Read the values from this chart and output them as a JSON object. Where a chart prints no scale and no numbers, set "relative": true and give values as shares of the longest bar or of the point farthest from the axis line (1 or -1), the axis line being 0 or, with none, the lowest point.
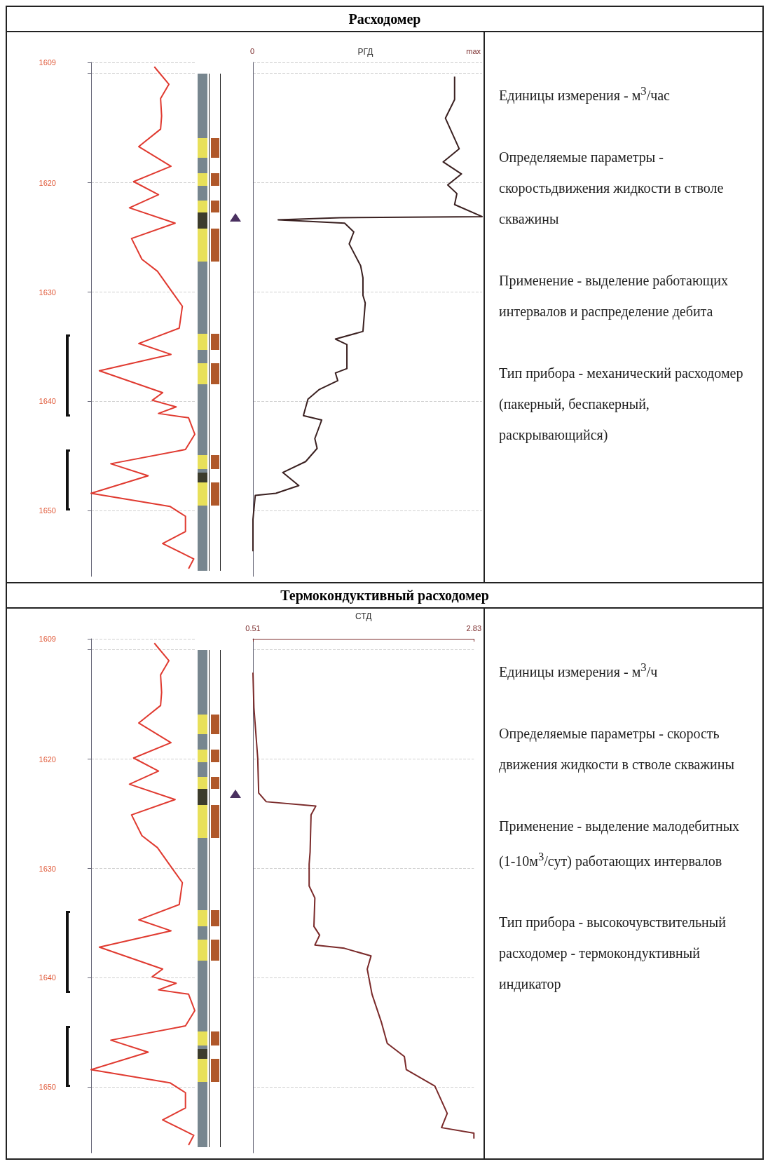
{
  "chart_data": [
    {
      "type": "line",
      "orientation": "horizontal",
      "relative": true,
      "ylim": [
        1656,
        1609
      ],
      "yticks": [
        1609,
        {
          "value": 1610,
          "label": null
        },
        1620,
        1630,
        1640,
        1650
      ],
      "grid": "y",
      "tick_labels": "y",
      "annotations": [
        "Единицы измерения - м$^{3}$/час",
        "Определяемые параметры - скоростьдвижения жидкости в стволе скважины",
        "Применение - выделение работающих интервалов и распределение дебита",
        "Тип прибора - механический расходомер (пакерный, беспакерный, раскрывающийся)"
      ],
      "series": [
        {
          "color": "#e03a30",
          "values": [
            0.61,
            0.75,
            0.67,
            0.68,
            0.67,
            0.46,
            0.77,
            0.41,
            0.65,
            0.37,
            0.81,
            0.39,
            0.49,
            0.64,
            0.79,
            0.88,
            0.85,
            0.46,
            0.77,
            0.08,
            0.69,
            0.59,
            0.82,
            0.65,
            0.94,
            1.0,
            0.91,
            0.19,
            0.55,
            0,
            0.76,
            0.91,
            0.91,
            0.69,
            0.99,
            0.94
          ],
          "x": [
            1609.4,
            1611.0,
            1612.3,
            1613.9,
            1615.1,
            1616.7,
            1618.5,
            1619.9,
            1621.1,
            1622.3,
            1623.7,
            1625.1,
            1627.0,
            1628.1,
            1630.1,
            1631.3,
            1633.3,
            1634.7,
            1635.7,
            1637.2,
            1639.2,
            1639.9,
            1640.5,
            1641.1,
            1641.5,
            1643.0,
            1644.4,
            1645.7,
            1646.8,
            1648.4,
            1649.6,
            1650.5,
            1651.9,
            1653.0,
            1654.4,
            1655.3
          ]
        }
      ]
    },
    {
      "type": "line",
      "title": "Расходомер",
      "orientation": "horizontal",
      "relative": true,
      "xlabel": "РГД",
      "ylim": [
        1656,
        1609
      ],
      "yticks": [
        1609,
        1610,
        1620,
        1630,
        1640,
        1650
      ],
      "grid": "y",
      "tick_labels": false,
      "annotations": [
        "0",
        "max"
      ],
      "series": [
        {
          "color": "#3a2020",
          "values": [
            0.88,
            0.88,
            0.84,
            0.9,
            0.83,
            0.91,
            0.85,
            0.89,
            0.88,
            1.0,
            0.38,
            0.11,
            0.4,
            0.44,
            0.42,
            0.47,
            0.48,
            0.48,
            0.49,
            0.48,
            0.36,
            0.41,
            0.41,
            0.36,
            0.37,
            0.29,
            0.24,
            0.22,
            0.3,
            0.27,
            0.28,
            0.23,
            0.13,
            0.2,
            0.1,
            0.01,
            0,
            0
          ],
          "x": [
            1610.3,
            1612.4,
            1614.1,
            1616.9,
            1618.1,
            1619.2,
            1620.2,
            1621.0,
            1622.0,
            1623.1,
            1623.2,
            1623.4,
            1623.7,
            1624.5,
            1625.6,
            1627.6,
            1628.7,
            1630.3,
            1631.0,
            1633.6,
            1634.3,
            1634.8,
            1637.0,
            1637.4,
            1638.1,
            1638.9,
            1639.8,
            1641.3,
            1641.7,
            1643.4,
            1644.3,
            1645.5,
            1646.5,
            1647.7,
            1648.4,
            1648.6,
            1650.8,
            1653.7
          ]
        }
      ]
    },
    {
      "type": "line",
      "orientation": "horizontal",
      "relative": true,
      "ylim": [
        1656,
        1609
      ],
      "yticks": [
        1609,
        {
          "value": 1610,
          "label": null
        },
        1620,
        1630,
        1640,
        1650
      ],
      "grid": "y",
      "tick_labels": "y",
      "annotations": [
        "Единицы измерения - м$^{3}$/ч",
        "Определяемые параметры - скорость движения жидкости в стволе скважины",
        "Применение - выделение малодебитных (1-10м$^{3}$/сут) работающих интервалов",
        "Тип прибора - высокочувствительный расходомер - термокондуктивный индикатор"
      ],
      "series": [
        {
          "color": "#e03a30",
          "values": [
            0.61,
            0.75,
            0.67,
            0.68,
            0.67,
            0.46,
            0.77,
            0.41,
            0.65,
            0.37,
            0.81,
            0.39,
            0.49,
            0.64,
            0.79,
            0.88,
            0.85,
            0.46,
            0.77,
            0.08,
            0.69,
            0.59,
            0.82,
            0.65,
            0.94,
            1.0,
            0.91,
            0.19,
            0.55,
            0,
            0.76,
            0.91,
            0.91,
            0.69,
            0.99,
            0.94
          ],
          "x": [
            1609.4,
            1611.0,
            1612.3,
            1613.9,
            1615.1,
            1616.7,
            1618.5,
            1619.9,
            1621.1,
            1622.3,
            1623.7,
            1625.1,
            1627.0,
            1628.1,
            1630.1,
            1631.3,
            1633.3,
            1634.7,
            1635.7,
            1637.2,
            1639.2,
            1639.9,
            1640.5,
            1641.1,
            1641.5,
            1643.0,
            1644.4,
            1645.7,
            1646.8,
            1648.4,
            1649.6,
            1650.5,
            1651.9,
            1653.0,
            1654.4,
            1655.3
          ]
        }
      ]
    },
    {
      "type": "line",
      "title": "Термокондуктивный расходомер",
      "orientation": "horizontal",
      "xlabel": "СТД",
      "xlim": [
        0.51,
        2.83
      ],
      "xticks": [
        0.51,
        2.83
      ],
      "ylim": [
        1656,
        1609
      ],
      "yticks": [
        1609,
        1610,
        1620,
        1630,
        1640,
        1650
      ],
      "grid": "y",
      "tick_labels": "x",
      "series": [
        {
          "color": "#7a2a2a",
          "values": [
            0.51,
            0.52,
            0.56,
            0.57,
            0.65,
            1.17,
            1.12,
            1.11,
            1.1,
            1.1,
            1.16,
            1.15,
            1.21,
            1.16,
            1.47,
            1.75,
            1.71,
            1.76,
            1.86,
            1.92,
            2.1,
            2.12,
            2.42,
            2.55,
            2.49,
            2.83,
            2.83
          ],
          "x": [
            1612.1,
            1615.3,
            1619.9,
            1623.1,
            1623.9,
            1624.3,
            1625.1,
            1628.5,
            1629.6,
            1631.6,
            1632.7,
            1635.3,
            1636.1,
            1637.0,
            1637.3,
            1638.0,
            1639.2,
            1641.5,
            1644.1,
            1646.0,
            1647.2,
            1648.4,
            1649.9,
            1652.4,
            1653.7,
            1654.2,
            1654.7
          ]
        }
      ]
    }
  ]
}
